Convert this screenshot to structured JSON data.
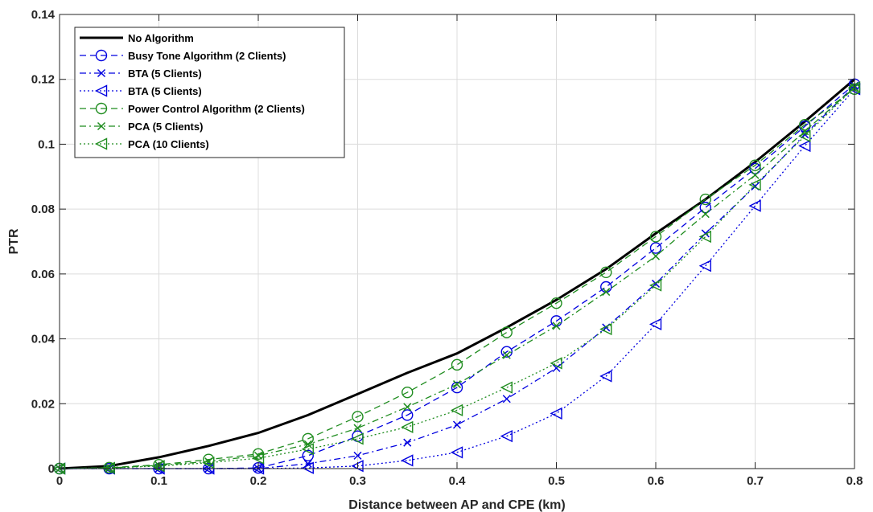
{
  "chart_data": {
    "type": "line",
    "title": "",
    "xlabel": "Distance between AP and CPE (km)",
    "ylabel": "PTR",
    "xlim": [
      0,
      0.8
    ],
    "ylim": [
      0,
      0.14
    ],
    "x_ticks": [
      0,
      0.1,
      0.2,
      0.3,
      0.4,
      0.5,
      0.6,
      0.7,
      0.8
    ],
    "x_tick_labels": [
      "0",
      "0.1",
      "0.2",
      "0.3",
      "0.4",
      "0.5",
      "0.6",
      "0.7",
      "0.8"
    ],
    "y_ticks": [
      0,
      0.02,
      0.04,
      0.06,
      0.08,
      0.1,
      0.12,
      0.14
    ],
    "y_tick_labels": [
      "0",
      "0.02",
      "0.04",
      "0.06",
      "0.08",
      "0.1",
      "0.12",
      "0.14"
    ],
    "grid": true,
    "legend_position": "top-left",
    "x": [
      0,
      0.05,
      0.1,
      0.15,
      0.2,
      0.25,
      0.3,
      0.35,
      0.4,
      0.45,
      0.5,
      0.55,
      0.6,
      0.65,
      0.7,
      0.75,
      0.8
    ],
    "series": [
      {
        "name": "No Algorithm",
        "color": "#000000",
        "dash": "solid",
        "marker": "none",
        "width": 3,
        "values": [
          0,
          0.0008,
          0.0035,
          0.007,
          0.011,
          0.0165,
          0.023,
          0.0295,
          0.0355,
          0.0435,
          0.052,
          0.0615,
          0.0725,
          0.083,
          0.0945,
          0.107,
          0.12
        ]
      },
      {
        "name": "Busy Tone Algorithm (2 Clients)",
        "color": "#0000e0",
        "dash": "dashed",
        "marker": "circle",
        "width": 1.3,
        "values": [
          0,
          0,
          0,
          0,
          0.0002,
          0.004,
          0.01,
          0.0165,
          0.025,
          0.036,
          0.0455,
          0.056,
          0.068,
          0.0805,
          0.0925,
          0.1055,
          0.1185
        ]
      },
      {
        "name": "BTA (5 Clients)",
        "color": "#0000e0",
        "dash": "dashdot",
        "marker": "x",
        "width": 1.3,
        "values": [
          0,
          0,
          0,
          0,
          0,
          0.0015,
          0.004,
          0.008,
          0.0135,
          0.0215,
          0.031,
          0.0435,
          0.057,
          0.0725,
          0.087,
          0.103,
          0.118
        ]
      },
      {
        "name": "BTA (5 Clients)",
        "color": "#0000e0",
        "dash": "dotted",
        "marker": "triangle-left",
        "width": 1.3,
        "values": [
          0,
          0,
          0,
          0,
          0,
          0.0002,
          0.0008,
          0.0025,
          0.005,
          0.01,
          0.017,
          0.0285,
          0.0445,
          0.0625,
          0.081,
          0.0995,
          0.117
        ]
      },
      {
        "name": "Power Control Algorithm (2 Clients)",
        "color": "#1e8c1e",
        "dash": "dashed",
        "marker": "circle",
        "width": 1.3,
        "values": [
          0,
          0.0003,
          0.0012,
          0.0028,
          0.0045,
          0.0092,
          0.016,
          0.0235,
          0.032,
          0.042,
          0.051,
          0.0605,
          0.0715,
          0.083,
          0.0935,
          0.106,
          0.117
        ]
      },
      {
        "name": "PCA (5 Clients)",
        "color": "#1e8c1e",
        "dash": "dashdot",
        "marker": "x",
        "width": 1.3,
        "values": [
          0,
          0.0002,
          0.001,
          0.0022,
          0.004,
          0.0075,
          0.0125,
          0.019,
          0.026,
          0.035,
          0.044,
          0.0545,
          0.0655,
          0.0785,
          0.0905,
          0.104,
          0.1175
        ]
      },
      {
        "name": "PCA (10 Clients)",
        "color": "#1e8c1e",
        "dash": "dotted",
        "marker": "triangle-left",
        "width": 1.3,
        "values": [
          0,
          0.0002,
          0.0008,
          0.0018,
          0.0032,
          0.006,
          0.0092,
          0.0128,
          0.018,
          0.025,
          0.0325,
          0.043,
          0.0565,
          0.0715,
          0.0875,
          0.1025,
          0.1175
        ]
      }
    ]
  }
}
